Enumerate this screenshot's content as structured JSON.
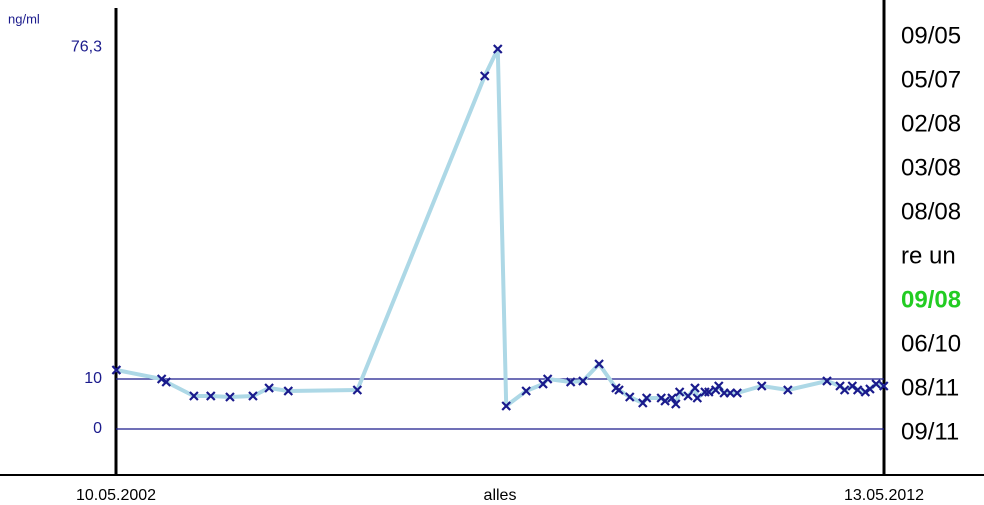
{
  "chart_data": {
    "type": "line",
    "y_label": "ng/ml",
    "x_label": "alles",
    "y_max_label": {
      "value": 76.3,
      "label": "76,3"
    },
    "x": [
      2002.36,
      2002.95,
      2003.01,
      2003.37,
      2003.59,
      2003.84,
      2004.14,
      2004.35,
      2004.6,
      2005.5,
      2007.16,
      2007.33,
      2007.44,
      2007.7,
      2007.92,
      2007.98,
      2008.28,
      2008.44,
      2008.65,
      2008.87,
      2008.91,
      2009.05,
      2009.22,
      2009.27,
      2009.46,
      2009.51,
      2009.6,
      2009.65,
      2009.7,
      2009.81,
      2009.9,
      2009.93,
      2010.03,
      2010.08,
      2010.17,
      2010.21,
      2010.28,
      2010.36,
      2010.45,
      2010.77,
      2011.11,
      2011.62,
      2011.79,
      2011.85,
      2011.95,
      2012.02,
      2012.12,
      2012.18,
      2012.26,
      2012.36
    ],
    "series": [
      {
        "line_color": "#add8e6",
        "marker_color": "#1a1a8c",
        "values": [
          11.8,
          10,
          9.4,
          6.6,
          6.6,
          6.4,
          6.6,
          8.2,
          7.6,
          7.8,
          70.6,
          76,
          4.6,
          7.6,
          9,
          10,
          9.4,
          9.6,
          13,
          8.2,
          7.8,
          6.4,
          5.2,
          6.2,
          6.2,
          5.6,
          6.2,
          5,
          7.4,
          6.6,
          8.2,
          6.2,
          7.4,
          7.4,
          7.8,
          8.6,
          7.2,
          7.2,
          7.2,
          8.6,
          7.8,
          9.6,
          8.6,
          7.8,
          8.6,
          7.8,
          7.4,
          8,
          9,
          8.6
        ]
      }
    ],
    "xlim": [
      2002.355,
      2012.363
    ],
    "xticks": [
      {
        "value": 2002.355,
        "label": "10.05.2002"
      },
      {
        "value": 2012.363,
        "label": "13.05.2012"
      }
    ],
    "ylim": [
      -9.2,
      85.8
    ],
    "yticks": [
      0,
      10
    ],
    "grid": true,
    "side_list": [
      "09/05",
      "05/07",
      "02/08",
      "03/08",
      "08/08",
      "re un",
      "09/08",
      "06/10",
      "08/11",
      "09/11"
    ],
    "side_list_highlight": 6
  }
}
